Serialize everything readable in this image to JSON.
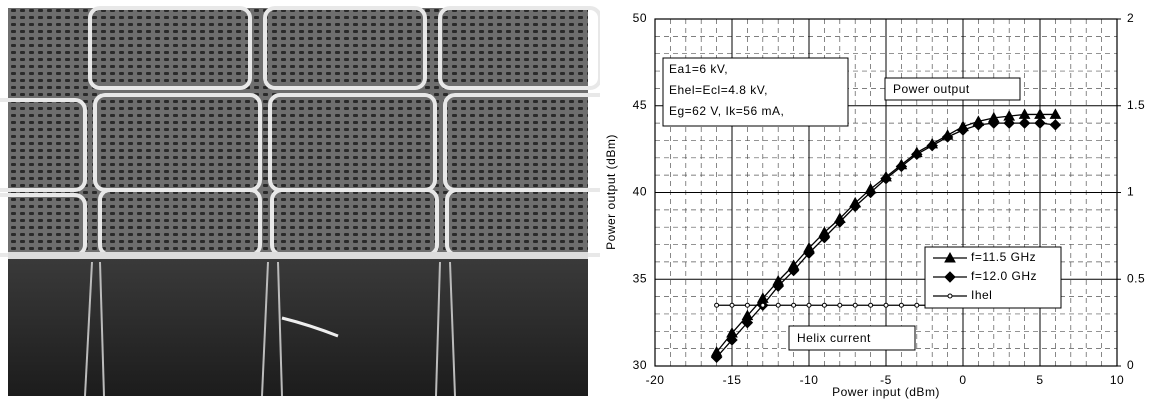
{
  "chart_data": {
    "type": "line",
    "x_label": "Power input (dBm)",
    "y_label": "Power output (dBm)",
    "x": [
      -16,
      -15,
      -14,
      -13,
      -12,
      -11,
      -10,
      -9,
      -8,
      -7,
      -6,
      -5,
      -4,
      -3,
      -2,
      -1,
      0,
      1,
      2,
      3,
      4,
      5,
      6
    ],
    "series": [
      {
        "name": "f=11.5 GHz",
        "color": "#000000",
        "marker": "triangle",
        "values": [
          30.8,
          31.9,
          32.9,
          33.9,
          34.9,
          35.8,
          36.8,
          37.7,
          38.5,
          39.4,
          40.2,
          40.9,
          41.6,
          42.3,
          42.8,
          43.3,
          43.8,
          44.1,
          44.3,
          44.4,
          44.5,
          44.5,
          44.5
        ]
      },
      {
        "name": "f=12.0 GHz",
        "color": "#000000",
        "marker": "diamond",
        "values": [
          30.5,
          31.5,
          32.5,
          33.5,
          34.6,
          35.5,
          36.5,
          37.4,
          38.3,
          39.2,
          40.0,
          40.8,
          41.5,
          42.2,
          42.7,
          43.2,
          43.6,
          43.9,
          44.0,
          44.0,
          44.0,
          44.0,
          43.9
        ]
      },
      {
        "name": "Ihel",
        "color": "#000000",
        "marker": "circle",
        "axis": "y2",
        "values": [
          0.35,
          0.35,
          0.35,
          0.35,
          0.35,
          0.35,
          0.35,
          0.35,
          0.35,
          0.35,
          0.35,
          0.35,
          0.35,
          0.35,
          0.35,
          0.35,
          0.35,
          0.352,
          0.355,
          0.36,
          0.365,
          0.37,
          0.38
        ]
      }
    ],
    "xlim": [
      -20,
      10
    ],
    "xticks": [
      -20,
      -15,
      -10,
      -5,
      0,
      5,
      10
    ],
    "ylim": [
      30,
      50
    ],
    "yticks": [
      30,
      35,
      40,
      45,
      50
    ],
    "y2lim": [
      0,
      2
    ],
    "y2ticks": [
      0,
      0.5,
      1,
      1.5,
      2
    ],
    "grid": true,
    "legend": "right",
    "annotations": [
      "Ea1=6 kV,",
      "Ehel=Ecl=4.8 kV,",
      "Eg=62 V, Ik=56 mA,",
      "Power output",
      "Helix current"
    ]
  }
}
